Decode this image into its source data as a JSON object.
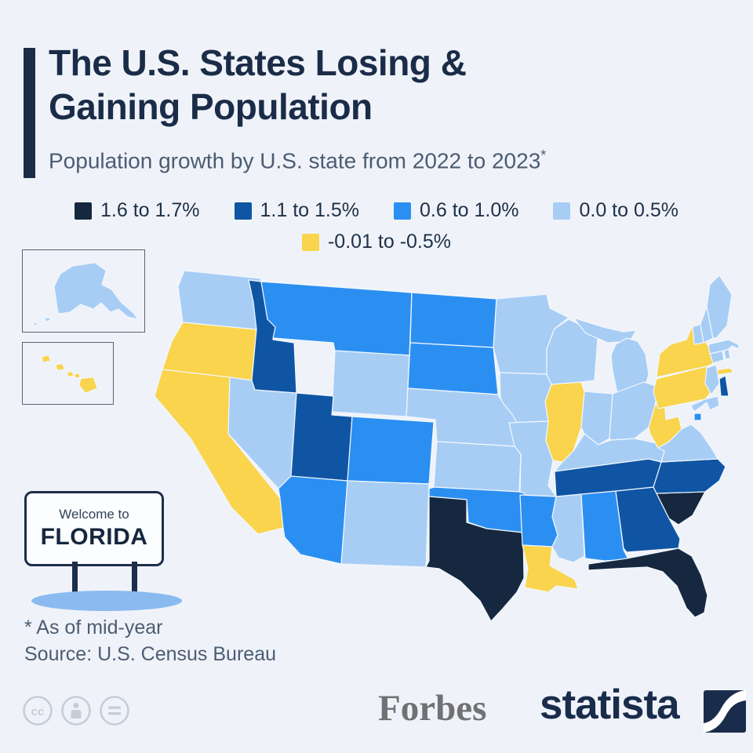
{
  "header": {
    "title_line1": "The U.S. States Losing &",
    "title_line2": "Gaining Population",
    "subtitle": "Population growth by U.S. state from 2022 to 2023",
    "subtitle_asterisk": "*"
  },
  "legend": {
    "items": [
      {
        "label": "1.6 to 1.7%",
        "color": "#16283f"
      },
      {
        "label": "1.1 to 1.5%",
        "color": "#0f55a4"
      },
      {
        "label": "0.6 to 1.0%",
        "color": "#2b8ff2"
      },
      {
        "label": "0.0 to 0.5%",
        "color": "#a7cdf5"
      },
      {
        "label": "-0.01 to -0.5%",
        "color": "#f9d44c"
      }
    ]
  },
  "chart_data": {
    "type": "heatmap",
    "subtype": "us-choropleth-map",
    "title": "The U.S. States Losing & Gaining Population",
    "unit": "percent population growth by U.S. state, 2022 to 2023",
    "legend_position": "top-center",
    "bins": [
      {
        "label": "1.6 to 1.7%",
        "color": "#16283f",
        "states": [
          "TX",
          "FL",
          "SC"
        ]
      },
      {
        "label": "1.1 to 1.5%",
        "color": "#0f55a4",
        "states": [
          "ID",
          "UT",
          "TN",
          "NC",
          "GA",
          "DE"
        ]
      },
      {
        "label": "0.6 to 1.0%",
        "color": "#2b8ff2",
        "states": [
          "MT",
          "ND",
          "SD",
          "CO",
          "AZ",
          "OK",
          "AR",
          "AL",
          "DC"
        ]
      },
      {
        "label": "0.0 to 0.5%",
        "color": "#a7cdf5",
        "states": [
          "WA",
          "NV",
          "WY",
          "NM",
          "NE",
          "KS",
          "MN",
          "IA",
          "MO",
          "WI",
          "MI",
          "IN",
          "OH",
          "KY",
          "VA",
          "MD",
          "NJ",
          "CT",
          "RI",
          "MA",
          "VT",
          "NH",
          "ME",
          "MS",
          "AK"
        ]
      },
      {
        "label": "-0.01 to -0.5%",
        "color": "#f9d44c",
        "states": [
          "OR",
          "CA",
          "HI",
          "IL",
          "LA",
          "NY",
          "PA",
          "WV"
        ]
      }
    ]
  },
  "florida_sign": {
    "line1": "Welcome to",
    "line2": "FLORIDA"
  },
  "footnote": {
    "line1": "* As of mid-year",
    "line2": "Source: U.S. Census Bureau"
  },
  "branding": {
    "forbes": "Forbes",
    "statista": "statista"
  },
  "license_icons": [
    "cc-icon",
    "attribution-person-icon",
    "equals-icon"
  ],
  "colors": {
    "background": "#eff3f9",
    "title_navy": "#1b2c48",
    "subtitle_gray": "#4c5c72",
    "map_stroke": "#f2f7fd",
    "sign_shadow_blue": "#8abaf0",
    "cc_gray": "#c6cdd8",
    "forbes_gray": "#717174",
    "statista_navy": "#1a2c4c"
  }
}
